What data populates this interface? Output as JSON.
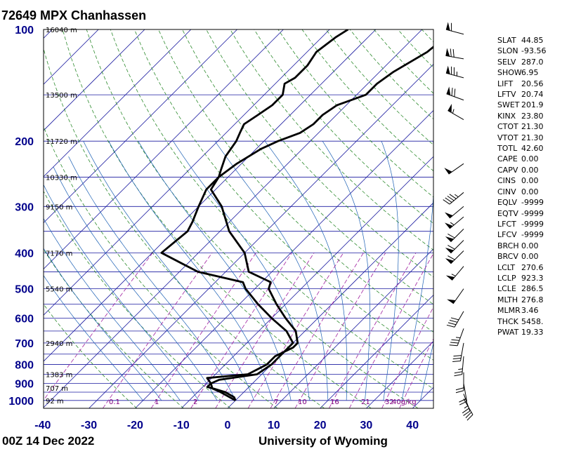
{
  "chart_data": {
    "type": "skew-t log-p sounding",
    "title": "72649 MPX Chanhassen",
    "footer_left": "00Z 14 Dec 2022",
    "footer_right": "University of Wyoming",
    "x_ticks": [
      "-40",
      "-30",
      "-20",
      "-10",
      "0",
      "10",
      "20",
      "30",
      "40"
    ],
    "pressure_ticks": [
      {
        "p": 100,
        "label": "100"
      },
      {
        "p": 200,
        "label": "200"
      },
      {
        "p": 300,
        "label": "300"
      },
      {
        "p": 400,
        "label": "400"
      },
      {
        "p": 500,
        "label": "500"
      },
      {
        "p": 600,
        "label": "600"
      },
      {
        "p": 700,
        "label": "700"
      },
      {
        "p": 800,
        "label": "800"
      },
      {
        "p": 900,
        "label": "900"
      },
      {
        "p": 1000,
        "label": "1000"
      }
    ],
    "height_labels": [
      {
        "p": 100,
        "label": "16040 m"
      },
      {
        "p": 150,
        "label": "13500 m"
      },
      {
        "p": 200,
        "label": "11720 m"
      },
      {
        "p": 250,
        "label": "10330 m"
      },
      {
        "p": 300,
        "label": "9150 m"
      },
      {
        "p": 400,
        "label": "7170 m"
      },
      {
        "p": 500,
        "label": "5540 m"
      },
      {
        "p": 700,
        "label": "2940 m"
      },
      {
        "p": 850,
        "label": "1383 m"
      },
      {
        "p": 925,
        "label": "707 m"
      },
      {
        "p": 1000,
        "label": "92 m"
      }
    ],
    "mixing_ratio_labels": [
      "0.1",
      "1",
      "2",
      "7",
      "10",
      "16",
      "21",
      "32",
      "40g/kg"
    ],
    "temperature": [
      [
        100,
        -56
      ],
      [
        105,
        -57
      ],
      [
        115,
        -58
      ],
      [
        125,
        -57
      ],
      [
        135,
        -57
      ],
      [
        140,
        -58
      ],
      [
        150,
        -56
      ],
      [
        160,
        -56
      ],
      [
        170,
        -57
      ],
      [
        180,
        -58
      ],
      [
        190,
        -57
      ],
      [
        200,
        -56
      ],
      [
        220,
        -55
      ],
      [
        240,
        -53
      ],
      [
        250,
        -52
      ],
      [
        270,
        -51
      ],
      [
        300,
        -45
      ],
      [
        350,
        -38
      ],
      [
        400,
        -30
      ],
      [
        450,
        -25
      ],
      [
        480,
        -18
      ],
      [
        500,
        -17
      ],
      [
        550,
        -12
      ],
      [
        600,
        -7
      ],
      [
        650,
        -2
      ],
      [
        700,
        1
      ],
      [
        720,
        1
      ],
      [
        760,
        -1
      ],
      [
        800,
        -1
      ],
      [
        850,
        -3
      ],
      [
        870,
        -11
      ],
      [
        900,
        -9
      ],
      [
        920,
        -8
      ],
      [
        925,
        -8
      ],
      [
        950,
        -4
      ],
      [
        980,
        -1
      ],
      [
        1000,
        0
      ]
    ],
    "dewpoint": [
      [
        100,
        -33
      ],
      [
        115,
        -34
      ],
      [
        130,
        -37
      ],
      [
        140,
        -38
      ],
      [
        150,
        -38
      ],
      [
        160,
        -42
      ],
      [
        170,
        -43
      ],
      [
        180,
        -43
      ],
      [
        190,
        -44
      ],
      [
        200,
        -47
      ],
      [
        210,
        -49
      ],
      [
        230,
        -51
      ],
      [
        250,
        -52
      ],
      [
        270,
        -52
      ],
      [
        300,
        -50
      ],
      [
        330,
        -48
      ],
      [
        350,
        -47
      ],
      [
        400,
        -48
      ],
      [
        450,
        -36
      ],
      [
        480,
        -24
      ],
      [
        500,
        -22
      ],
      [
        550,
        -16
      ],
      [
        600,
        -10
      ],
      [
        650,
        -4
      ],
      [
        700,
        0
      ],
      [
        760,
        0
      ],
      [
        800,
        0
      ],
      [
        850,
        -1
      ],
      [
        880,
        -8
      ],
      [
        900,
        -9
      ],
      [
        920,
        -9
      ],
      [
        925,
        -8
      ],
      [
        950,
        -5
      ],
      [
        1000,
        0
      ]
    ],
    "winds": [
      {
        "p": 103,
        "dir": 285,
        "kt": 60
      },
      {
        "p": 120,
        "dir": 280,
        "kt": 70
      },
      {
        "p": 135,
        "dir": 285,
        "kt": 75
      },
      {
        "p": 155,
        "dir": 290,
        "kt": 70
      },
      {
        "p": 175,
        "dir": 300,
        "kt": 55
      },
      {
        "p": 230,
        "dir": 235,
        "kt": 50
      },
      {
        "p": 275,
        "dir": 230,
        "kt": 45
      },
      {
        "p": 300,
        "dir": 230,
        "kt": 50
      },
      {
        "p": 320,
        "dir": 230,
        "kt": 55
      },
      {
        "p": 345,
        "dir": 225,
        "kt": 60
      },
      {
        "p": 370,
        "dir": 225,
        "kt": 60
      },
      {
        "p": 395,
        "dir": 225,
        "kt": 60
      },
      {
        "p": 435,
        "dir": 220,
        "kt": 55
      },
      {
        "p": 500,
        "dir": 215,
        "kt": 50
      },
      {
        "p": 575,
        "dir": 210,
        "kt": 40
      },
      {
        "p": 640,
        "dir": 200,
        "kt": 35
      },
      {
        "p": 700,
        "dir": 190,
        "kt": 30
      },
      {
        "p": 760,
        "dir": 185,
        "kt": 25
      },
      {
        "p": 840,
        "dir": 180,
        "kt": 20
      },
      {
        "p": 900,
        "dir": 170,
        "kt": 20
      },
      {
        "p": 960,
        "dir": 160,
        "kt": 25
      },
      {
        "p": 990,
        "dir": 150,
        "kt": 20
      }
    ],
    "background_lines": {
      "isobars": true,
      "isotherms": true,
      "dry_adiabats": true,
      "moist_adiabats": true,
      "mixing_ratio_lines": true
    }
  },
  "indices": [
    {
      "name": "SLAT",
      "value": "44.85"
    },
    {
      "name": "SLON",
      "value": "-93.56"
    },
    {
      "name": "SELV",
      "value": "287.0"
    },
    {
      "name": "SHOW",
      "value": "6.95"
    },
    {
      "name": "LIFT",
      "value": "20.56"
    },
    {
      "name": "LFTV",
      "value": "20.74"
    },
    {
      "name": "SWET",
      "value": "201.9"
    },
    {
      "name": "KINX",
      "value": "23.80"
    },
    {
      "name": "CTOT",
      "value": "21.30"
    },
    {
      "name": "VTOT",
      "value": "21.30"
    },
    {
      "name": "TOTL",
      "value": "42.60"
    },
    {
      "name": "CAPE",
      "value": "0.00"
    },
    {
      "name": "CAPV",
      "value": "0.00"
    },
    {
      "name": "CINS",
      "value": "0.00"
    },
    {
      "name": "CINV",
      "value": "0.00"
    },
    {
      "name": "EQLV",
      "value": "-9999"
    },
    {
      "name": "EQTV",
      "value": "-9999"
    },
    {
      "name": "LFCT",
      "value": "-9999"
    },
    {
      "name": "LFCV",
      "value": "-9999"
    },
    {
      "name": "BRCH",
      "value": "0.00"
    },
    {
      "name": "BRCV",
      "value": "0.00"
    },
    {
      "name": "LCLT",
      "value": "270.6"
    },
    {
      "name": "LCLP",
      "value": "923.3"
    },
    {
      "name": "LCLE",
      "value": "286.5"
    },
    {
      "name": "MLTH",
      "value": "276.8"
    },
    {
      "name": "MLMR",
      "value": "3.46"
    },
    {
      "name": "THCK",
      "value": "5458."
    },
    {
      "name": "PWAT",
      "value": "19.33"
    }
  ],
  "colors": {
    "isobar": "#1a1aa0",
    "isotherm": "#1a1aa0",
    "dry_adiabat": "#2e8b2e",
    "moist_adiabat": "#1a5fb4",
    "mixing_ratio": "#a020a0",
    "profile": "#000000",
    "axis_text": "#00008b",
    "label_purple": "#800080"
  }
}
